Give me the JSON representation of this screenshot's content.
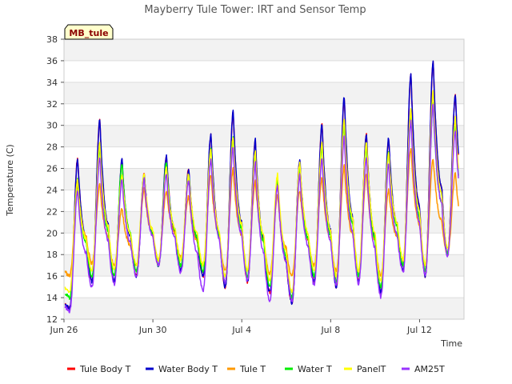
{
  "chart_data": {
    "type": "line",
    "title": "Mayberry Tule Tower: IRT and Sensor Temp",
    "xlabel": "Time",
    "ylabel": "Temperature (C)",
    "tag": "MB_tule",
    "ylim": [
      12,
      38
    ],
    "yticks": [
      12,
      14,
      16,
      18,
      20,
      22,
      24,
      26,
      28,
      30,
      32,
      34,
      36,
      38
    ],
    "xlim": [
      0,
      18
    ],
    "xticks": [
      {
        "value": 0,
        "label": "Jun 26"
      },
      {
        "value": 4,
        "label": "Jun 30"
      },
      {
        "value": 8,
        "label": "Jul 4"
      },
      {
        "value": 12,
        "label": "Jul 8"
      },
      {
        "value": 16,
        "label": "Jul 12"
      }
    ],
    "series": [
      {
        "name": "Tule Body T",
        "color": "#ff0000",
        "peaks": [
          27.0,
          30.5,
          26.8,
          25.5,
          27.2,
          26.0,
          29.2,
          31.3,
          28.6,
          24.7,
          26.8,
          30.1,
          32.6,
          29.2,
          28.8,
          34.8,
          36.0,
          32.8
        ],
        "mins": [
          13.0,
          15.5,
          15.5,
          16.0,
          17.0,
          16.5,
          16.0,
          15.0,
          15.5,
          14.5,
          13.5,
          15.5,
          15.0,
          15.5,
          14.5,
          16.5,
          16.0,
          18.0
        ]
      },
      {
        "name": "Water Body T",
        "color": "#0000cc",
        "peaks": [
          27.0,
          30.6,
          26.8,
          25.5,
          27.2,
          26.0,
          29.3,
          31.4,
          28.7,
          24.8,
          26.9,
          30.2,
          32.7,
          29.3,
          28.9,
          34.9,
          36.1,
          32.9
        ],
        "mins": [
          13.0,
          15.5,
          15.5,
          16.0,
          17.0,
          16.5,
          16.0,
          15.0,
          15.5,
          14.5,
          13.5,
          15.5,
          15.0,
          15.5,
          14.5,
          16.5,
          16.0,
          18.0
        ]
      },
      {
        "name": "Tule T",
        "color": "#ff9900",
        "peaks": [
          24.5,
          24.5,
          22.3,
          24.2,
          24.0,
          23.5,
          25.5,
          26.0,
          24.8,
          23.5,
          24.0,
          25.2,
          26.2,
          25.5,
          24.0,
          28.0,
          27.0,
          25.5
        ],
        "mins": [
          16.0,
          17.2,
          17.0,
          17.0,
          17.5,
          17.8,
          17.0,
          16.5,
          16.5,
          16.2,
          16.0,
          17.0,
          16.5,
          16.5,
          16.0,
          17.5,
          17.0,
          18.0
        ]
      },
      {
        "name": "Water T",
        "color": "#00ee00",
        "peaks": [
          25.0,
          28.0,
          26.5,
          25.5,
          26.5,
          25.5,
          27.8,
          28.8,
          27.0,
          25.0,
          26.0,
          28.0,
          30.0,
          28.0,
          27.5,
          31.0,
          32.0,
          30.0
        ],
        "mins": [
          14.0,
          16.0,
          16.0,
          16.5,
          17.0,
          17.0,
          16.5,
          15.5,
          16.0,
          15.0,
          14.0,
          16.0,
          15.5,
          16.0,
          15.0,
          17.0,
          16.5,
          18.0
        ]
      },
      {
        "name": "PanelT",
        "color": "#ffff00",
        "peaks": [
          25.0,
          28.3,
          25.5,
          25.5,
          26.0,
          25.5,
          27.8,
          29.0,
          27.5,
          25.5,
          26.5,
          28.3,
          30.5,
          28.5,
          27.5,
          31.5,
          33.2,
          30.7
        ],
        "mins": [
          14.5,
          16.5,
          16.5,
          17.0,
          17.5,
          17.5,
          17.0,
          16.0,
          16.5,
          15.5,
          14.5,
          16.5,
          16.0,
          16.5,
          15.5,
          17.5,
          17.0,
          18.5
        ]
      },
      {
        "name": "AM25T",
        "color": "#9933ff",
        "peaks": [
          24.0,
          27.0,
          25.0,
          25.0,
          25.5,
          25.0,
          27.0,
          28.0,
          26.5,
          24.5,
          25.5,
          27.0,
          29.0,
          27.0,
          26.5,
          30.5,
          32.0,
          29.5
        ],
        "mins": [
          12.7,
          15.0,
          15.2,
          16.0,
          17.0,
          16.3,
          14.6,
          15.4,
          15.6,
          13.7,
          13.7,
          15.2,
          15.2,
          15.3,
          14.1,
          16.3,
          16.1,
          17.9
        ]
      }
    ]
  }
}
